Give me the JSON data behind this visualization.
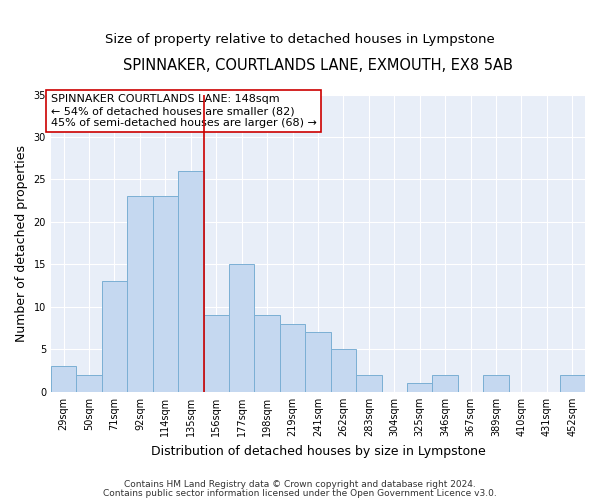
{
  "title": "SPINNAKER, COURTLANDS LANE, EXMOUTH, EX8 5AB",
  "subtitle": "Size of property relative to detached houses in Lympstone",
  "xlabel": "Distribution of detached houses by size in Lympstone",
  "ylabel": "Number of detached properties",
  "bar_labels": [
    "29sqm",
    "50sqm",
    "71sqm",
    "92sqm",
    "114sqm",
    "135sqm",
    "156sqm",
    "177sqm",
    "198sqm",
    "219sqm",
    "241sqm",
    "262sqm",
    "283sqm",
    "304sqm",
    "325sqm",
    "346sqm",
    "367sqm",
    "389sqm",
    "410sqm",
    "431sqm",
    "452sqm"
  ],
  "bar_values": [
    3,
    2,
    13,
    23,
    23,
    26,
    9,
    15,
    9,
    8,
    7,
    5,
    2,
    0,
    1,
    2,
    0,
    2,
    0,
    0,
    2
  ],
  "bar_color": "#C5D8F0",
  "bar_edge_color": "#7BAFD4",
  "vline_x": 5.5,
  "vline_color": "#CC0000",
  "annotation_text": "SPINNAKER COURTLANDS LANE: 148sqm\n← 54% of detached houses are smaller (82)\n45% of semi-detached houses are larger (68) →",
  "annotation_box_color": "#ffffff",
  "annotation_box_edge": "#CC0000",
  "ylim": [
    0,
    35
  ],
  "yticks": [
    0,
    5,
    10,
    15,
    20,
    25,
    30,
    35
  ],
  "footer1": "Contains HM Land Registry data © Crown copyright and database right 2024.",
  "footer2": "Contains public sector information licensed under the Open Government Licence v3.0.",
  "bg_color": "#E8EEF8",
  "grid_color": "#ffffff",
  "title_fontsize": 10.5,
  "subtitle_fontsize": 9.5,
  "label_fontsize": 9,
  "tick_fontsize": 7,
  "footer_fontsize": 6.5,
  "annotation_fontsize": 8
}
